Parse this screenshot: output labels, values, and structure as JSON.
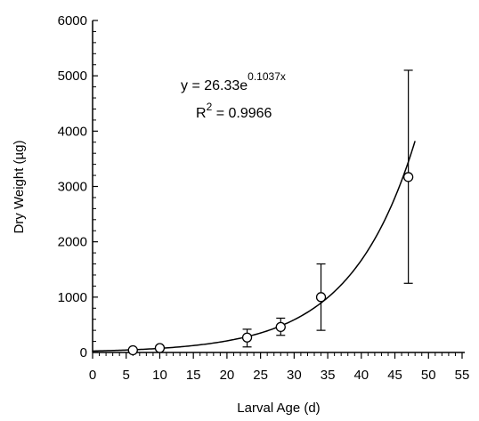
{
  "chart_data": {
    "type": "scatter",
    "title": "",
    "xlabel": "Larval Age (d)",
    "ylabel": "Dry Weight (µg)",
    "xlim": [
      0,
      55
    ],
    "ylim": [
      0,
      6000
    ],
    "x_ticks": [
      "0",
      "5",
      "10",
      "15",
      "20",
      "25",
      "30",
      "35",
      "40",
      "45",
      "50",
      "55"
    ],
    "y_ticks": [
      "0",
      "1000",
      "2000",
      "3000",
      "4000",
      "5000",
      "6000"
    ],
    "grid": false,
    "legend": "none",
    "series": [
      {
        "points": [
          {
            "x": 6,
            "y": 40,
            "err_low": 10,
            "err_high": 70
          },
          {
            "x": 10,
            "y": 80,
            "err_low": 40,
            "err_high": 120
          },
          {
            "x": 23,
            "y": 270,
            "err_low": 100,
            "err_high": 420
          },
          {
            "x": 28,
            "y": 460,
            "err_low": 310,
            "err_high": 620
          },
          {
            "x": 34,
            "y": 1000,
            "err_low": 400,
            "err_high": 1600
          },
          {
            "x": 47,
            "y": 3170,
            "err_low": 1250,
            "err_high": 5100
          }
        ]
      }
    ],
    "fit": {
      "a": 26.33,
      "b": 0.1037,
      "x_range": [
        0,
        48
      ]
    },
    "annotation": {
      "equation_base": "y = 26.33e",
      "equation_exp": "0.1037x",
      "r2_prefix": "R",
      "r2_sup": "2",
      "r2_value": " = 0.9966"
    }
  }
}
